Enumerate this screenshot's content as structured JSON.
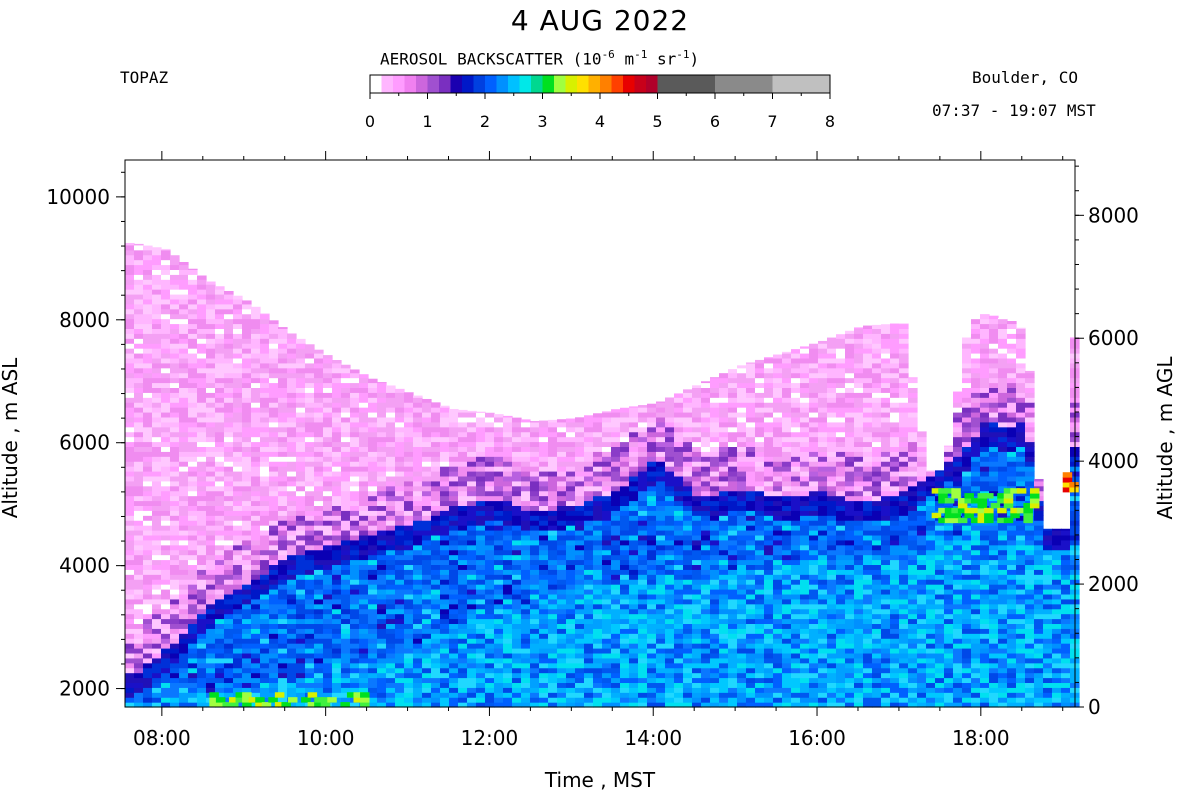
{
  "header": {
    "title": "4 AUG 2022",
    "instrument": "TOPAZ",
    "location": "Boulder, CO",
    "time_range": "07:37 - 19:07 MST"
  },
  "colorbar": {
    "title_prefix": "AEROSOL BACKSCATTER (10",
    "exp1": "-6",
    "mid1": " m",
    "exp2": "-1",
    "mid2": " sr",
    "exp3": "-1",
    "suffix": ")",
    "min": 0,
    "max": 8,
    "ticks": [
      "0",
      "1",
      "2",
      "3",
      "4",
      "5",
      "6",
      "7",
      "8"
    ],
    "colors": [
      "#ffffff",
      "#ffb6ff",
      "#ff9cff",
      "#f080f0",
      "#cc66dd",
      "#a050d0",
      "#7a2fc0",
      "#1a00b0",
      "#0018c8",
      "#0040e0",
      "#0060ff",
      "#0090ff",
      "#00c0ff",
      "#00e8e8",
      "#00d890",
      "#00e020",
      "#a0ff40",
      "#d8f000",
      "#ffe000",
      "#ffb000",
      "#ff8000",
      "#ff4000",
      "#e80000",
      "#c8001a",
      "#b0002a",
      "#5a5a5a",
      "#5a5a5a",
      "#8a8a8a",
      "#8a8a8a",
      "#c0c0c0",
      "#c0c0c0"
    ]
  },
  "chart_data": {
    "type": "heatmap",
    "title": "4 AUG 2022",
    "xlabel": "Time , MST",
    "ylabel_left": "Altitude , m ASL",
    "ylabel_right": "Altitude , m AGL",
    "xlim": [
      7.55,
      19.15
    ],
    "ylim_asl": [
      1700,
      10600
    ],
    "ylim_agl": [
      0,
      8900
    ],
    "x_ticks": [
      "08:00",
      "10:00",
      "12:00",
      "14:00",
      "16:00",
      "18:00"
    ],
    "x_tick_values": [
      8,
      10,
      12,
      14,
      16,
      18
    ],
    "y_ticks_asl": [
      2000,
      4000,
      6000,
      8000,
      10000
    ],
    "y_ticks_agl": [
      0,
      2000,
      4000,
      6000,
      8000
    ],
    "profile": {
      "hours": [
        7.6,
        8.0,
        8.5,
        9.0,
        9.5,
        10.0,
        10.5,
        11.0,
        11.5,
        12.0,
        12.5,
        13.0,
        13.5,
        14.0,
        14.5,
        15.0,
        15.5,
        16.0,
        16.5,
        17.0,
        17.3,
        17.5,
        17.8,
        18.0,
        18.3,
        18.5,
        18.7,
        19.0,
        19.1
      ],
      "top_m": [
        9250,
        9150,
        8650,
        8300,
        7800,
        7400,
        7050,
        6800,
        6550,
        6480,
        6350,
        6400,
        6550,
        6650,
        6950,
        7250,
        7450,
        7650,
        7900,
        7950,
        5550,
        5550,
        7950,
        8100,
        8000,
        7800,
        4600,
        4600,
        8100
      ],
      "blue_m": [
        2200,
        2600,
        3300,
        3700,
        4100,
        4300,
        4450,
        4650,
        4900,
        5050,
        4850,
        4950,
        5200,
        5700,
        5100,
        5200,
        5100,
        5150,
        5000,
        5150,
        5400,
        5600,
        5900,
        6300,
        6200,
        6300,
        4600,
        4600,
        6100
      ],
      "cyan_m": [
        1750,
        1800,
        1900,
        2000,
        2100,
        2250,
        2500,
        2700,
        3000,
        3200,
        3400,
        3600,
        3700,
        3800,
        3700,
        3900,
        4000,
        4050,
        4100,
        4150,
        4200,
        4300,
        4400,
        4500,
        4500,
        4400,
        4300,
        4300,
        4300
      ]
    },
    "features": [
      {
        "name": "high aerosol layer (green-yellow)",
        "hours": [
          17.4,
          18.6
        ],
        "altitude_m": [
          4700,
          5200
        ],
        "backscatter": 3.5
      },
      {
        "name": "near-surface layer (green)",
        "hours": [
          8.5,
          10.5
        ],
        "altitude_m": [
          1700,
          1900
        ],
        "backscatter": 2.8
      },
      {
        "name": "red column",
        "hours": [
          19.0,
          19.1
        ],
        "altitude_m": [
          5200,
          5500
        ],
        "backscatter": 4.5
      }
    ]
  }
}
